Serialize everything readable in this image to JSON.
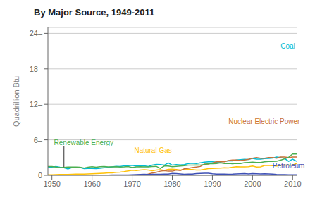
{
  "chart_data": {
    "type": "line",
    "title": "By Major Source, 1949-2011",
    "ylabel": "Quadrillion Btu",
    "x": [
      1949,
      1950,
      1951,
      1952,
      1953,
      1954,
      1955,
      1956,
      1957,
      1958,
      1959,
      1960,
      1961,
      1962,
      1963,
      1964,
      1965,
      1966,
      1967,
      1968,
      1969,
      1970,
      1971,
      1972,
      1973,
      1974,
      1975,
      1976,
      1977,
      1978,
      1979,
      1980,
      1981,
      1982,
      1983,
      1984,
      1985,
      1986,
      1987,
      1988,
      1989,
      1990,
      1991,
      1992,
      1993,
      1994,
      1995,
      1996,
      1997,
      1998,
      1999,
      2000,
      2001,
      2002,
      2003,
      2004,
      2005,
      2006,
      2007,
      2008,
      2009,
      2010,
      2011
    ],
    "series": [
      {
        "name": "Coal",
        "color": "#00bcd4",
        "values": [
          1.32,
          1.39,
          1.48,
          1.36,
          1.27,
          1.07,
          1.3,
          1.35,
          1.34,
          1.14,
          1.15,
          1.15,
          1.12,
          1.18,
          1.27,
          1.35,
          1.44,
          1.53,
          1.5,
          1.6,
          1.64,
          1.7,
          1.58,
          1.65,
          1.6,
          1.5,
          1.73,
          1.85,
          1.82,
          1.72,
          2.1,
          1.72,
          1.82,
          1.75,
          1.82,
          2.0,
          2.04,
          2.0,
          2.12,
          2.23,
          2.28,
          2.29,
          2.24,
          2.27,
          2.38,
          2.44,
          2.44,
          2.6,
          2.66,
          2.72,
          2.68,
          2.87,
          2.73,
          2.73,
          2.82,
          2.86,
          2.93,
          3.09,
          3.0,
          2.85,
          2.37,
          2.72,
          2.37
        ]
      },
      {
        "name": "Natural Gas",
        "color": "#ffc107",
        "values": [
          0.08,
          0.1,
          0.12,
          0.14,
          0.15,
          0.16,
          0.18,
          0.2,
          0.22,
          0.22,
          0.25,
          0.27,
          0.29,
          0.32,
          0.36,
          0.41,
          0.43,
          0.5,
          0.55,
          0.64,
          0.75,
          0.86,
          0.8,
          0.88,
          0.96,
          0.88,
          0.78,
          0.88,
          0.94,
          0.84,
          1.0,
          1.04,
          0.98,
          0.88,
          0.94,
          0.98,
          0.98,
          0.9,
          0.88,
          1.0,
          1.12,
          1.17,
          1.19,
          1.23,
          1.28,
          1.25,
          1.36,
          1.46,
          1.44,
          1.42,
          1.47,
          1.57,
          1.4,
          1.44,
          1.67,
          1.7,
          1.65,
          1.58,
          1.69,
          1.74,
          1.72,
          1.72,
          2.02
        ]
      },
      {
        "name": "Nuclear Electric Power",
        "color": "#c87137",
        "values": [
          0.0,
          0.0,
          0.0,
          0.0,
          0.0,
          0.0,
          0.0,
          0.0,
          0.0,
          0.0,
          0.0,
          0.0,
          0.0,
          0.0,
          0.0,
          0.0,
          0.0,
          0.0,
          0.0,
          0.0,
          0.0,
          0.0,
          0.0,
          0.0,
          0.1,
          0.2,
          0.4,
          0.5,
          0.7,
          0.8,
          0.7,
          0.7,
          0.9,
          0.8,
          1.1,
          1.2,
          1.3,
          1.4,
          1.5,
          1.9,
          1.9,
          2.1,
          2.3,
          2.3,
          2.3,
          2.5,
          2.6,
          2.6,
          2.5,
          2.6,
          2.7,
          2.9,
          3.0,
          2.9,
          2.9,
          3.0,
          3.0,
          2.9,
          3.1,
          3.1,
          3.0,
          3.1,
          3.1
        ]
      },
      {
        "name": "Renewable Energy",
        "color": "#4caf50",
        "values": [
          1.48,
          1.49,
          1.39,
          1.32,
          1.35,
          1.39,
          1.41,
          1.4,
          1.37,
          1.21,
          1.37,
          1.46,
          1.38,
          1.45,
          1.48,
          1.43,
          1.43,
          1.47,
          1.39,
          1.43,
          1.49,
          1.32,
          1.43,
          1.47,
          1.43,
          1.43,
          1.5,
          1.53,
          1.17,
          1.57,
          1.59,
          1.45,
          1.53,
          1.58,
          1.63,
          1.72,
          1.74,
          1.77,
          1.72,
          1.81,
          1.95,
          1.97,
          2.0,
          2.12,
          2.0,
          2.01,
          1.95,
          2.01,
          2.0,
          2.14,
          2.18,
          2.22,
          2.16,
          2.18,
          2.3,
          2.34,
          2.34,
          2.39,
          2.57,
          2.78,
          3.04,
          3.63,
          3.6
        ]
      },
      {
        "name": "Petroleum",
        "color": "#3f51b5",
        "values": [
          0.02,
          0.02,
          0.03,
          0.03,
          0.03,
          0.03,
          0.03,
          0.04,
          0.04,
          0.04,
          0.04,
          0.04,
          0.04,
          0.04,
          0.04,
          0.04,
          0.05,
          0.05,
          0.05,
          0.06,
          0.07,
          0.1,
          0.12,
          0.14,
          0.17,
          0.15,
          0.17,
          0.18,
          0.19,
          0.21,
          0.22,
          0.33,
          0.3,
          0.24,
          0.19,
          0.21,
          0.2,
          0.3,
          0.33,
          0.37,
          0.37,
          0.27,
          0.22,
          0.21,
          0.2,
          0.19,
          0.21,
          0.25,
          0.28,
          0.29,
          0.25,
          0.29,
          0.27,
          0.24,
          0.26,
          0.24,
          0.21,
          0.14,
          0.12,
          0.11,
          0.09,
          0.1,
          0.09
        ]
      }
    ],
    "annotations": [
      {
        "text": "Coal",
        "x": 2007,
        "y": 21.8
      },
      {
        "text": "Natural Gas",
        "x": 1970.5,
        "y": 4.2
      },
      {
        "text": "Nuclear Electric Power",
        "x": 1994,
        "y": 9.1
      },
      {
        "text": "Renewable Energy",
        "x": 1950.5,
        "y": 5.5,
        "line_x": [
          1953,
          1953
        ],
        "line_y": [
          1.4,
          4.9
        ]
      },
      {
        "text": "Petroleum",
        "x": 2005,
        "y": 1.6
      }
    ],
    "xlim": [
      1949,
      2011
    ],
    "ylim": [
      0,
      25
    ],
    "xticks": [
      1950,
      1960,
      1970,
      1980,
      1990,
      2000,
      2010
    ],
    "yticks": [
      0,
      {
        "value": 6,
        "label": "6–"
      },
      {
        "value": 12,
        "label": "12–"
      },
      {
        "value": 18,
        "label": "18–"
      },
      {
        "value": 24,
        "label": "24–"
      }
    ],
    "grid": true
  }
}
